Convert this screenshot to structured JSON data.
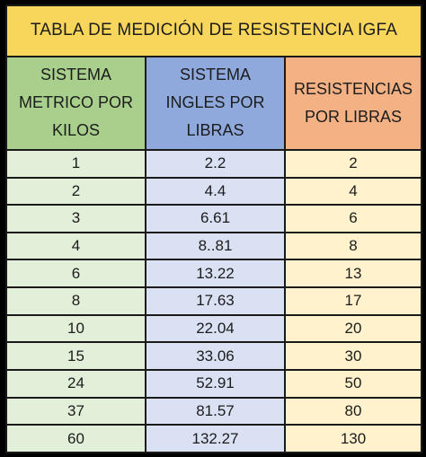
{
  "title": "TABLA DE MEDICIÓN DE RESISTENCIA IGFA",
  "headers": [
    [
      "SISTEMA",
      "METRICO POR",
      "KILOS"
    ],
    [
      "SISTEMA",
      "INGLES POR",
      "LIBRAS"
    ],
    [
      "RESISTENCIAS",
      "POR LIBRAS"
    ]
  ],
  "rows": [
    [
      "1",
      "2.2",
      "2"
    ],
    [
      "2",
      "4.4",
      "4"
    ],
    [
      "3",
      "6.61",
      "6"
    ],
    [
      "4",
      "8..81",
      "8"
    ],
    [
      "6",
      "13.22",
      "13"
    ],
    [
      "8",
      "17.63",
      "17"
    ],
    [
      "10",
      "22.04",
      "20"
    ],
    [
      "15",
      "33.06",
      "30"
    ],
    [
      "24",
      "52.91",
      "50"
    ],
    [
      "37",
      "81.57",
      "80"
    ],
    [
      "60",
      "132.27",
      "130"
    ]
  ],
  "colors": {
    "title_bg": "#f8d65c",
    "kg_header": "#a9cf8c",
    "lb_header": "#8fa9dd",
    "res_header": "#f4b184",
    "kg_cell": "#e2efd9",
    "lb_cell": "#d9e1f3",
    "res_cell": "#fff2cc"
  }
}
